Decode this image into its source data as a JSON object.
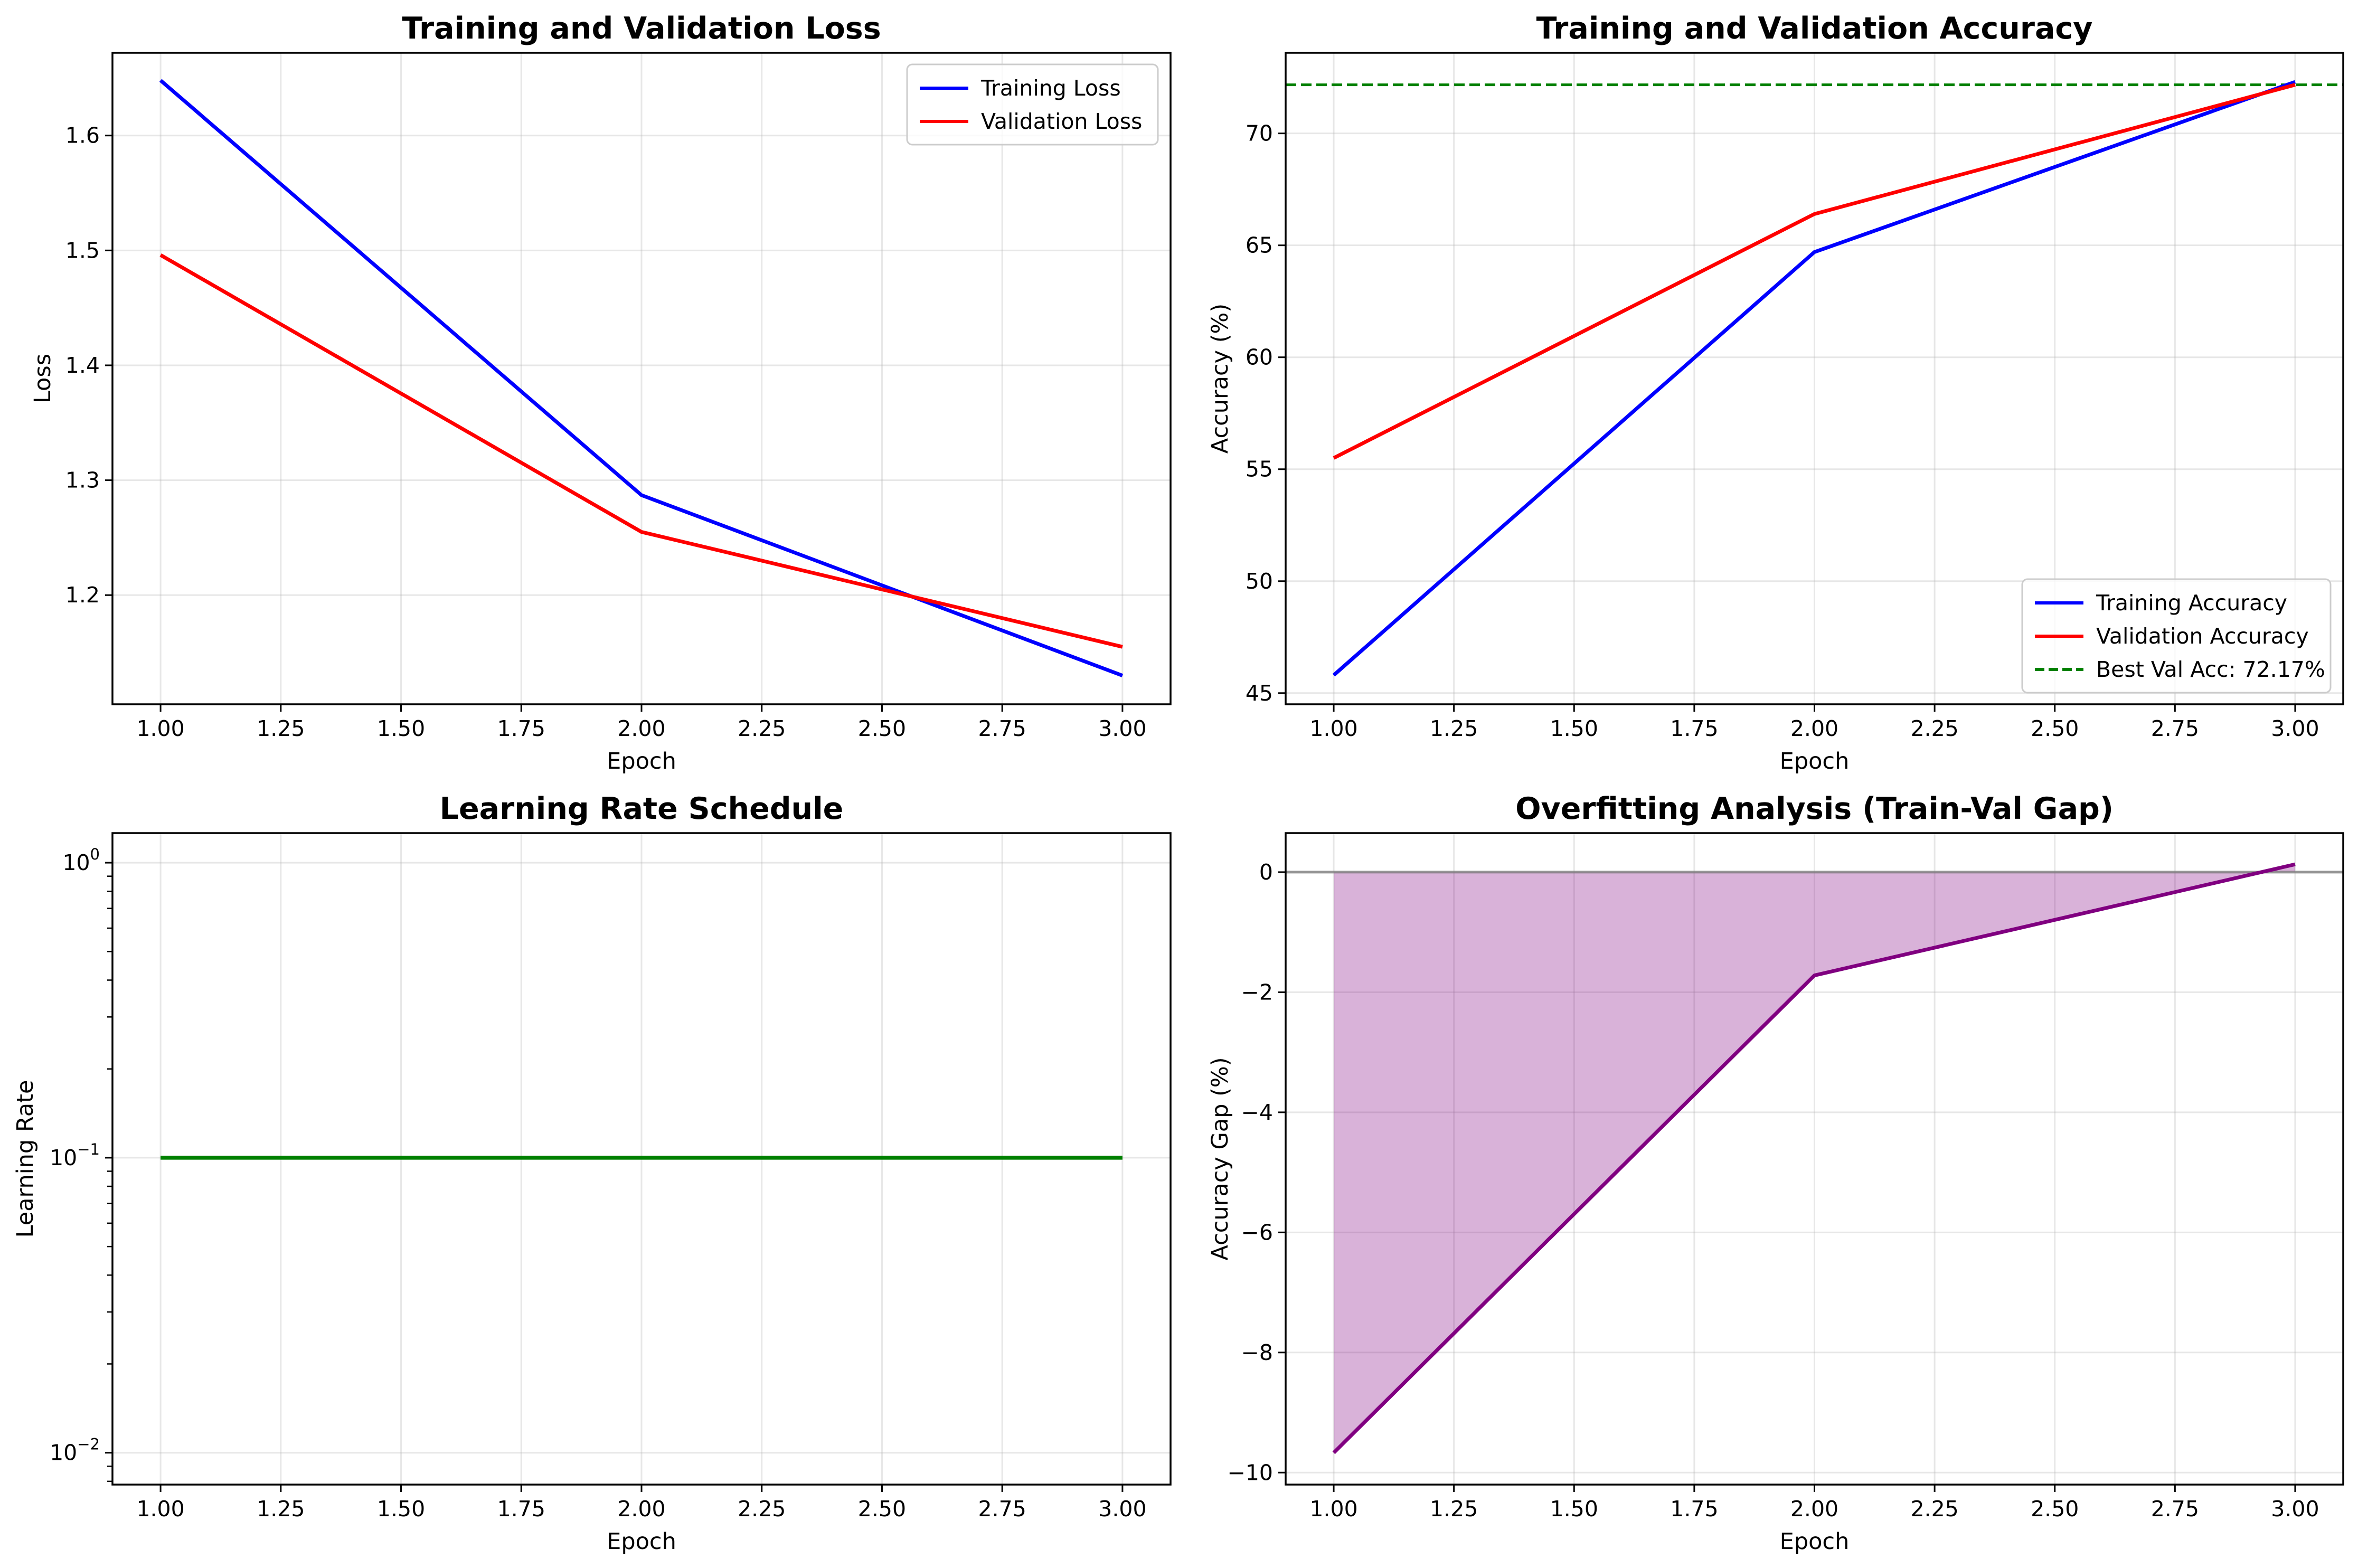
{
  "chart_data": [
    {
      "type": "line",
      "title": "Training and Validation Loss",
      "xlabel": "Epoch",
      "ylabel": "Loss",
      "x": [
        1,
        2,
        3
      ],
      "xlim": [
        0.9,
        3.1
      ],
      "ylim": [
        1.105,
        1.672
      ],
      "xticks": [
        1.0,
        1.25,
        1.5,
        1.75,
        2.0,
        2.25,
        2.5,
        2.75,
        3.0
      ],
      "xtick_labels": [
        "1.00",
        "1.25",
        "1.50",
        "1.75",
        "2.00",
        "2.25",
        "2.50",
        "2.75",
        "3.00"
      ],
      "yticks": [
        1.2,
        1.3,
        1.4,
        1.5,
        1.6
      ],
      "ytick_labels": [
        "1.2",
        "1.3",
        "1.4",
        "1.5",
        "1.6"
      ],
      "grid": true,
      "legend": "top-right",
      "series": [
        {
          "name": "Training Loss",
          "values": [
            1.648,
            1.287,
            1.13
          ],
          "color": "#0000ff"
        },
        {
          "name": "Validation Loss",
          "values": [
            1.496,
            1.255,
            1.155
          ],
          "color": "#ff0000"
        }
      ]
    },
    {
      "type": "line",
      "title": "Training and Validation Accuracy",
      "xlabel": "Epoch",
      "ylabel": "Accuracy (%)",
      "x": [
        1,
        2,
        3
      ],
      "xlim": [
        0.9,
        3.1
      ],
      "ylim": [
        44.5,
        73.6
      ],
      "xticks": [
        1.0,
        1.25,
        1.5,
        1.75,
        2.0,
        2.25,
        2.5,
        2.75,
        3.0
      ],
      "xtick_labels": [
        "1.00",
        "1.25",
        "1.50",
        "1.75",
        "2.00",
        "2.25",
        "2.50",
        "2.75",
        "3.00"
      ],
      "yticks": [
        45,
        50,
        55,
        60,
        65,
        70
      ],
      "ytick_labels": [
        "45",
        "50",
        "55",
        "60",
        "65",
        "70"
      ],
      "grid": true,
      "legend": "bottom-right",
      "series": [
        {
          "name": "Training Accuracy",
          "values": [
            45.8,
            64.7,
            72.3
          ],
          "color": "#0000ff"
        },
        {
          "name": "Validation Accuracy",
          "values": [
            55.5,
            66.4,
            72.17
          ],
          "color": "#ff0000"
        }
      ],
      "reference_line": {
        "name": "Best Val Acc: 72.17%",
        "value": 72.17,
        "color": "#008000",
        "style": "dashed"
      }
    },
    {
      "type": "line",
      "title": "Learning Rate Schedule",
      "xlabel": "Epoch",
      "ylabel": "Learning Rate",
      "x": [
        1,
        2,
        3
      ],
      "xlim": [
        0.9,
        3.1
      ],
      "yscale": "log",
      "ylim": [
        0.0078,
        1.26
      ],
      "xticks": [
        1.0,
        1.25,
        1.5,
        1.75,
        2.0,
        2.25,
        2.5,
        2.75,
        3.0
      ],
      "xtick_labels": [
        "1.00",
        "1.25",
        "1.50",
        "1.75",
        "2.00",
        "2.25",
        "2.50",
        "2.75",
        "3.00"
      ],
      "yticks": [
        0.01,
        0.1,
        1
      ],
      "ytick_labels": [
        {
          "base": "10",
          "exp": "−2"
        },
        {
          "base": "10",
          "exp": "−1"
        },
        {
          "base": "10",
          "exp": "0"
        }
      ],
      "grid": true,
      "series": [
        {
          "name": "",
          "values": [
            0.1,
            0.1,
            0.1
          ],
          "color": "#008000"
        }
      ]
    },
    {
      "type": "area",
      "title": "Overfitting Analysis (Train-Val Gap)",
      "xlabel": "Epoch",
      "ylabel": "Accuracy Gap (%)",
      "x": [
        1,
        2,
        3
      ],
      "xlim": [
        0.9,
        3.1
      ],
      "ylim": [
        -10.2,
        0.65
      ],
      "xticks": [
        1.0,
        1.25,
        1.5,
        1.75,
        2.0,
        2.25,
        2.5,
        2.75,
        3.0
      ],
      "xtick_labels": [
        "1.00",
        "1.25",
        "1.50",
        "1.75",
        "2.00",
        "2.25",
        "2.50",
        "2.75",
        "3.00"
      ],
      "yticks": [
        -10,
        -8,
        -6,
        -4,
        -2,
        0
      ],
      "ytick_labels": [
        "−10",
        "−8",
        "−6",
        "−4",
        "−2",
        "0"
      ],
      "grid": true,
      "zero_line": {
        "value": 0,
        "color": "#808080"
      },
      "series": [
        {
          "name": "",
          "values": [
            -9.67,
            -1.72,
            0.13
          ],
          "color": "#800080",
          "fill": "#800080",
          "fill_alpha": 0.3
        }
      ]
    }
  ]
}
